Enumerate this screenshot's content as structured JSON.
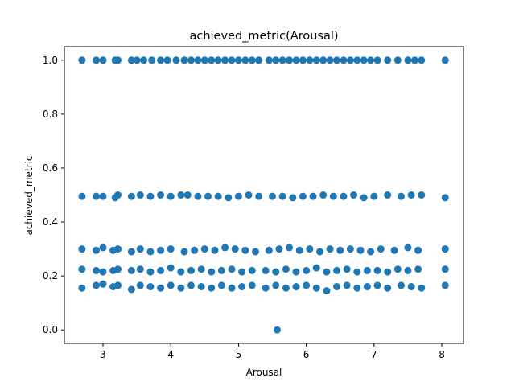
{
  "chart_data": {
    "type": "scatter",
    "title": "achieved_metric(Arousal)",
    "xlabel": "Arousal",
    "ylabel": "achieved_metric",
    "xlim": [
      2.43,
      8.32
    ],
    "ylim": [
      -0.05,
      1.05
    ],
    "xticks": [
      3,
      4,
      5,
      6,
      7,
      8
    ],
    "yticks": [
      0.0,
      0.2,
      0.4,
      0.6,
      0.8,
      1.0
    ],
    "ytick_labels": [
      "0.0",
      "0.2",
      "0.4",
      "0.6",
      "0.8",
      "1.0"
    ],
    "grid": false,
    "color": "#1f77b4",
    "x": [
      2.69,
      2.9,
      3.0,
      3.18,
      3.22,
      3.42,
      3.5,
      3.6,
      3.72,
      3.85,
      3.95,
      4.08,
      4.2,
      4.3,
      4.4,
      4.5,
      4.6,
      4.7,
      4.8,
      4.9,
      5.0,
      5.1,
      5.2,
      5.3,
      5.45,
      5.55,
      5.65,
      5.75,
      5.85,
      5.95,
      6.05,
      6.15,
      6.25,
      6.35,
      6.45,
      6.55,
      6.65,
      6.75,
      6.85,
      6.95,
      7.05,
      7.2,
      7.35,
      7.5,
      7.6,
      7.7,
      8.05,
      2.69,
      2.9,
      3.0,
      3.18,
      3.22,
      3.42,
      3.55,
      3.7,
      3.85,
      4.0,
      4.15,
      4.25,
      4.4,
      4.55,
      4.7,
      4.85,
      5.0,
      5.15,
      5.3,
      5.5,
      5.65,
      5.8,
      5.95,
      6.1,
      6.25,
      6.4,
      6.55,
      6.7,
      6.85,
      7.0,
      7.2,
      7.4,
      7.55,
      7.7,
      8.05,
      2.69,
      2.9,
      3.0,
      3.15,
      3.22,
      3.42,
      3.55,
      3.7,
      3.85,
      4.0,
      4.2,
      4.35,
      4.5,
      4.65,
      4.8,
      4.95,
      5.1,
      5.25,
      5.45,
      5.6,
      5.75,
      5.9,
      6.05,
      6.2,
      6.35,
      6.5,
      6.65,
      6.8,
      6.95,
      7.1,
      7.3,
      7.5,
      7.65,
      8.05,
      2.69,
      2.9,
      3.0,
      3.15,
      3.22,
      3.42,
      3.55,
      3.7,
      3.85,
      4.0,
      4.15,
      4.3,
      4.45,
      4.6,
      4.75,
      4.9,
      5.05,
      5.2,
      5.4,
      5.55,
      5.7,
      5.85,
      6.0,
      6.15,
      6.3,
      6.45,
      6.6,
      6.75,
      6.9,
      7.05,
      7.2,
      7.35,
      7.5,
      7.65,
      8.05,
      2.69,
      2.9,
      3.0,
      3.15,
      3.22,
      3.42,
      3.55,
      3.7,
      3.85,
      4.0,
      4.15,
      4.3,
      4.45,
      4.6,
      4.75,
      4.9,
      5.05,
      5.2,
      5.4,
      5.55,
      5.7,
      5.85,
      6.0,
      6.15,
      6.3,
      6.45,
      6.6,
      6.75,
      6.9,
      7.05,
      7.2,
      7.4,
      7.55,
      7.7,
      8.05,
      5.57
    ],
    "y": [
      1.0,
      1.0,
      1.0,
      1.0,
      1.0,
      1.0,
      1.0,
      1.0,
      1.0,
      1.0,
      1.0,
      1.0,
      1.0,
      1.0,
      1.0,
      1.0,
      1.0,
      1.0,
      1.0,
      1.0,
      1.0,
      1.0,
      1.0,
      1.0,
      1.0,
      1.0,
      1.0,
      1.0,
      1.0,
      1.0,
      1.0,
      1.0,
      1.0,
      1.0,
      1.0,
      1.0,
      1.0,
      1.0,
      1.0,
      1.0,
      1.0,
      1.0,
      1.0,
      1.0,
      1.0,
      1.0,
      1.0,
      0.495,
      0.495,
      0.495,
      0.49,
      0.5,
      0.495,
      0.5,
      0.495,
      0.5,
      0.495,
      0.5,
      0.5,
      0.495,
      0.495,
      0.495,
      0.49,
      0.495,
      0.5,
      0.495,
      0.495,
      0.495,
      0.49,
      0.495,
      0.495,
      0.5,
      0.495,
      0.495,
      0.5,
      0.49,
      0.495,
      0.5,
      0.495,
      0.5,
      0.5,
      0.49,
      0.3,
      0.295,
      0.305,
      0.295,
      0.3,
      0.29,
      0.3,
      0.29,
      0.295,
      0.3,
      0.29,
      0.295,
      0.3,
      0.295,
      0.305,
      0.3,
      0.295,
      0.29,
      0.295,
      0.3,
      0.305,
      0.295,
      0.3,
      0.29,
      0.3,
      0.295,
      0.3,
      0.295,
      0.29,
      0.3,
      0.295,
      0.305,
      0.295,
      0.3,
      0.225,
      0.22,
      0.215,
      0.22,
      0.225,
      0.22,
      0.225,
      0.215,
      0.22,
      0.23,
      0.215,
      0.22,
      0.225,
      0.215,
      0.22,
      0.225,
      0.215,
      0.22,
      0.22,
      0.215,
      0.225,
      0.215,
      0.22,
      0.23,
      0.215,
      0.22,
      0.225,
      0.215,
      0.22,
      0.22,
      0.215,
      0.225,
      0.22,
      0.225,
      0.225,
      0.155,
      0.165,
      0.17,
      0.16,
      0.165,
      0.15,
      0.165,
      0.16,
      0.155,
      0.165,
      0.155,
      0.165,
      0.16,
      0.155,
      0.165,
      0.155,
      0.16,
      0.165,
      0.155,
      0.165,
      0.155,
      0.16,
      0.165,
      0.155,
      0.145,
      0.16,
      0.165,
      0.155,
      0.16,
      0.165,
      0.155,
      0.165,
      0.16,
      0.155,
      0.165,
      0.0
    ]
  }
}
